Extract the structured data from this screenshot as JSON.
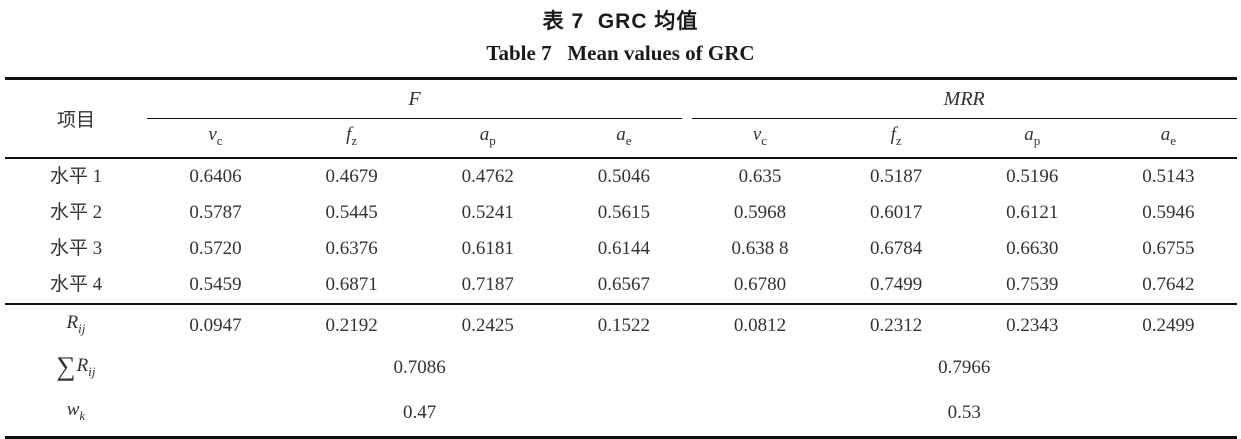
{
  "colors": {
    "background": "#ffffff",
    "text": "#333333",
    "title": "#1a1a1a",
    "rule_line": "#111111"
  },
  "title_zh": "表 7  GRC 均值",
  "title_en": "Table 7   Mean values of GRC",
  "table": {
    "item_header": "项目",
    "groups": [
      {
        "label": "F",
        "columns": [
          {
            "base": "v",
            "sub": "c"
          },
          {
            "base": "f",
            "sub": "z"
          },
          {
            "base": "a",
            "sub": "p"
          },
          {
            "base": "a",
            "sub": "e"
          }
        ]
      },
      {
        "label": "MRR",
        "columns": [
          {
            "base": "v",
            "sub": "c"
          },
          {
            "base": "f",
            "sub": "z"
          },
          {
            "base": "a",
            "sub": "p"
          },
          {
            "base": "a",
            "sub": "e"
          }
        ]
      }
    ],
    "rows": [
      {
        "type": "level",
        "label": "水平 1",
        "values": [
          "0.6406",
          "0.4679",
          "0.4762",
          "0.5046",
          "0.635",
          "0.5187",
          "0.5196",
          "0.5143"
        ]
      },
      {
        "type": "level",
        "label": "水平 2",
        "values": [
          "0.5787",
          "0.5445",
          "0.5241",
          "0.5615",
          "0.5968",
          "0.6017",
          "0.6121",
          "0.5946"
        ]
      },
      {
        "type": "level",
        "label": "水平 3",
        "values": [
          "0.5720",
          "0.6376",
          "0.6181",
          "0.6144",
          "0.638 8",
          "0.6784",
          "0.6630",
          "0.6755"
        ]
      },
      {
        "type": "level",
        "label": "水平 4",
        "values": [
          "0.5459",
          "0.6871",
          "0.7187",
          "0.6567",
          "0.6780",
          "0.7499",
          "0.7539",
          "0.7642"
        ]
      },
      {
        "type": "rij",
        "label": {
          "prefix": "",
          "base": "R",
          "sub": "ij"
        },
        "values": [
          "0.0947",
          "0.2192",
          "0.2425",
          "0.1522",
          "0.0812",
          "0.2312",
          "0.2343",
          "0.2499"
        ]
      },
      {
        "type": "span",
        "label": {
          "prefix": "∑",
          "base": "R",
          "sub": "ij"
        },
        "values": [
          "0.7086",
          "0.7966"
        ]
      },
      {
        "type": "span",
        "label": {
          "prefix": "",
          "base": "w",
          "sub": "k"
        },
        "values": [
          "0.47",
          "0.53"
        ]
      }
    ]
  }
}
